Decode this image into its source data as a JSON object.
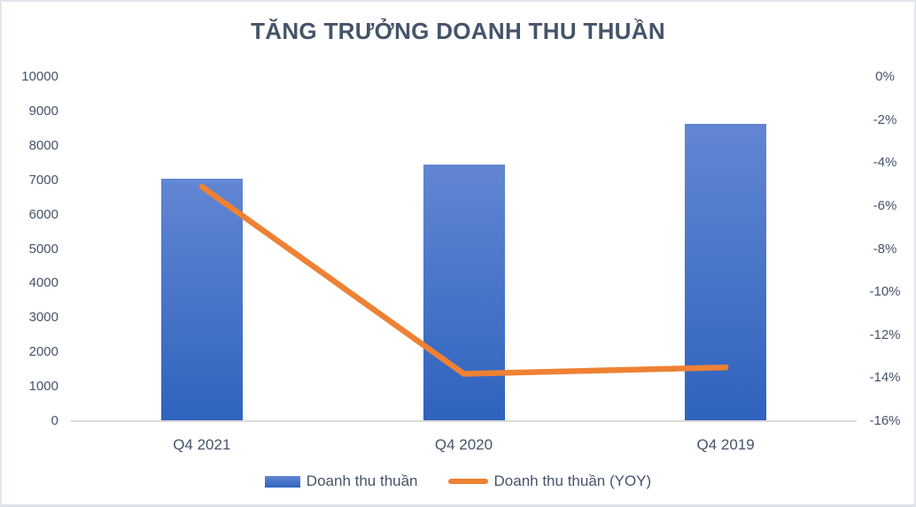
{
  "title": "TĂNG TRƯỞNG DOANH THU THUẦN",
  "colors": {
    "text": "#44546A",
    "axis_line": "#D9D9D9",
    "border": "#E2E6EC",
    "bar_gradient_top": "#6286D3",
    "bar_gradient_bottom": "#2F63BE",
    "line": "#EE8133"
  },
  "chart_data": {
    "type": "bar",
    "subtype": "combo bar+line, dual axis",
    "title": "TĂNG TRƯỞNG DOANH THU THUẦN",
    "categories": [
      "Q4 2021",
      "Q4 2020",
      "Q4 2019"
    ],
    "series": [
      {
        "name": "Doanh thu thuần",
        "type": "bar",
        "axis": "left",
        "values": [
          7050,
          7450,
          8650
        ]
      },
      {
        "name": "Doanh thu thuần (YOY)",
        "type": "line",
        "axis": "right",
        "values": [
          -5.1,
          -13.8,
          -13.5
        ]
      }
    ],
    "left_axis": {
      "min": 0,
      "max": 10000,
      "step": 1000,
      "tick_labels": [
        "10000",
        "9000",
        "8000",
        "7000",
        "6000",
        "5000",
        "4000",
        "3000",
        "2000",
        "1000",
        "0"
      ]
    },
    "right_axis": {
      "min": -16,
      "max": 0,
      "step": 2,
      "tick_labels": [
        "0%",
        "-2%",
        "-4%",
        "-6%",
        "-8%",
        "-10%",
        "-12%",
        "-14%",
        "-16%"
      ]
    },
    "grid": false,
    "legend_position": "bottom"
  }
}
